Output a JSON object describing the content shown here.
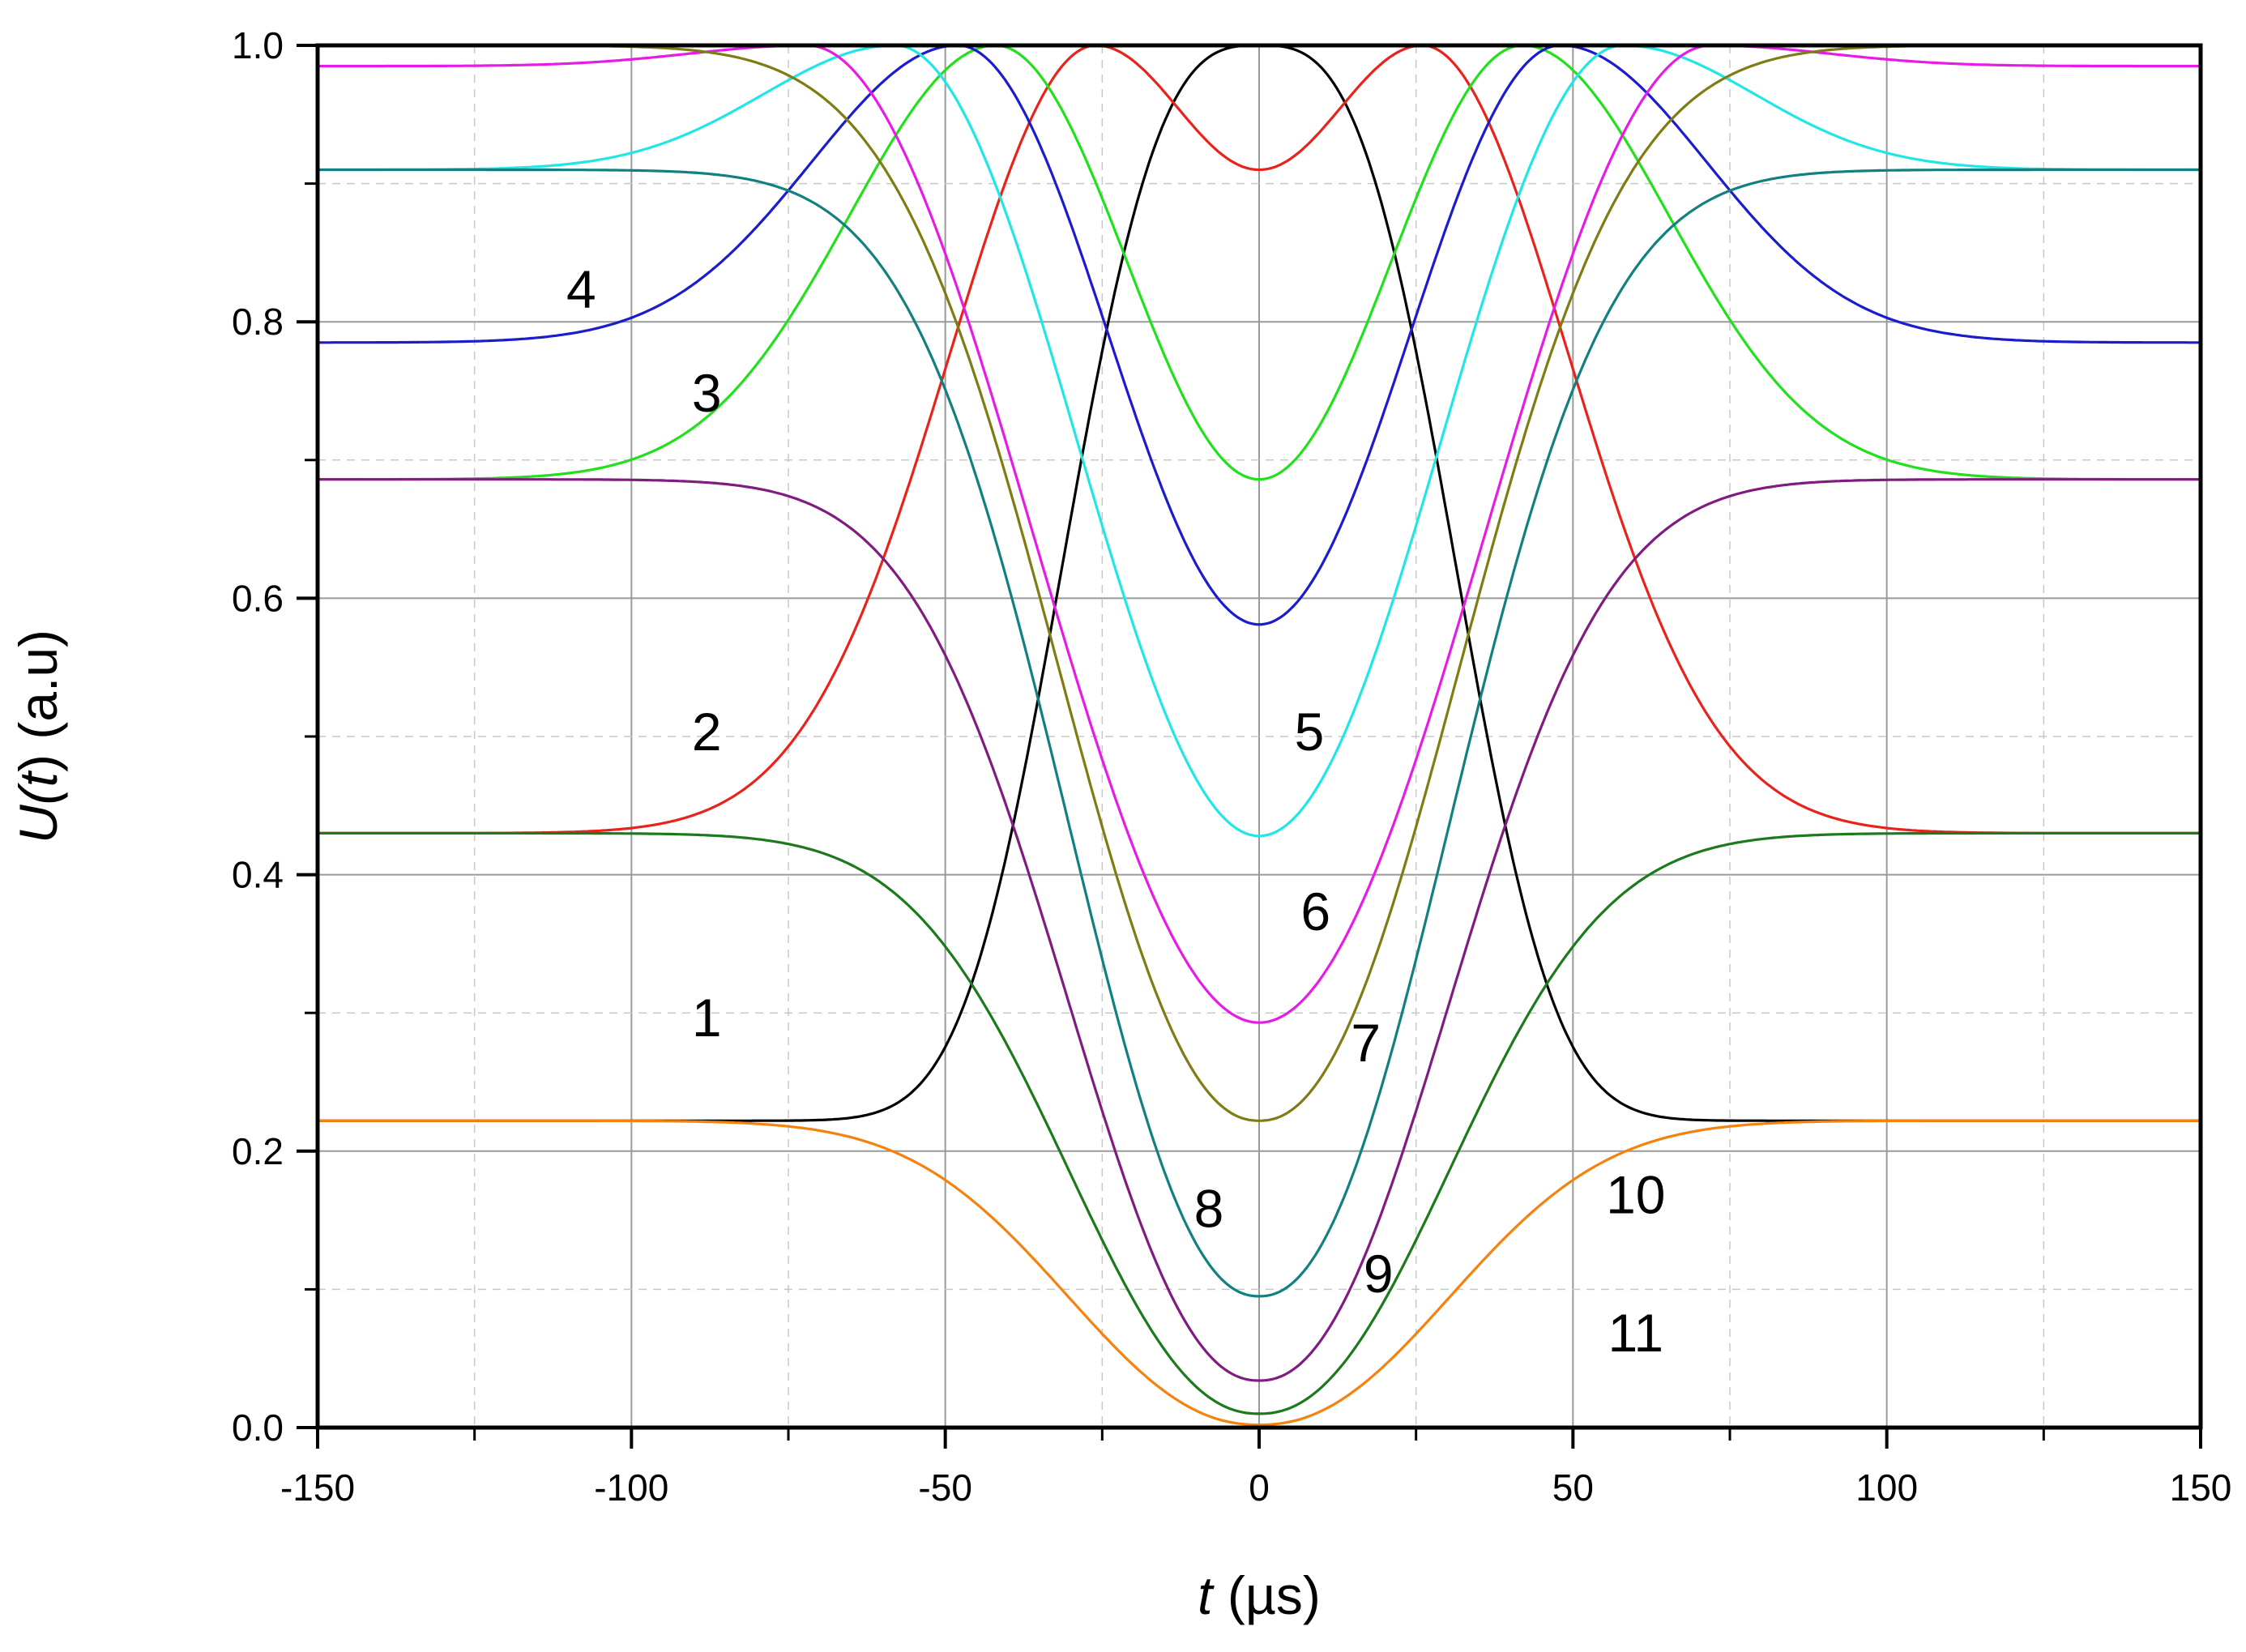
{
  "chart_data": {
    "type": "line",
    "xlabel_var": "t",
    "xlabel_unit": " (µs)",
    "ylabel_var_pre": "U(",
    "ylabel_var_t": "t",
    "ylabel_var_post": ")",
    "ylabel_unit": " (a.u)",
    "xlim": [
      -150,
      150
    ],
    "ylim": [
      0,
      1
    ],
    "xticks": [
      -150,
      -100,
      -50,
      0,
      50,
      100,
      150
    ],
    "xtick_labels": [
      "-150",
      "-100",
      "-50",
      "0",
      "50",
      "100",
      "150"
    ],
    "yticks": [
      0,
      0.2,
      0.4,
      0.6,
      0.8,
      1.0
    ],
    "ytick_labels": [
      "0.0",
      "0.2",
      "0.4",
      "0.6",
      "0.8",
      "1.0"
    ],
    "grid": true,
    "legend": "none",
    "series": [
      {
        "name": "1",
        "color": "#000000",
        "shape": "bump",
        "base": 0.222,
        "center": 0,
        "width": 36,
        "peak": 1.0
      },
      {
        "name": "2",
        "color": "#e8231c",
        "shape": "double",
        "base": 0.43,
        "center": 26,
        "width": 30,
        "peak": 1.0,
        "min": 0.91
      },
      {
        "name": "3",
        "color": "#22e01c",
        "shape": "double",
        "base": 0.686,
        "center": 42,
        "width": 30,
        "peak": 1.0,
        "min": 0.686
      },
      {
        "name": "4",
        "color": "#1c1ccc",
        "shape": "double",
        "base": 0.785,
        "center": 48,
        "width": 30,
        "peak": 1.0,
        "min": 0.581
      },
      {
        "name": "5",
        "color": "#22e6e6",
        "shape": "double",
        "base": 0.91,
        "center": 58,
        "width": 27,
        "peak": 1.0,
        "min": 0.428
      },
      {
        "name": "6",
        "color": "#e61ce6",
        "shape": "double",
        "base": 0.985,
        "center": 72,
        "width": 24,
        "peak": 1.0,
        "min": 0.293
      },
      {
        "name": "7",
        "color": "#807c14",
        "shape": "dip",
        "base": 1.0,
        "center": 0,
        "width": 42,
        "min": 0.222
      },
      {
        "name": "8",
        "color": "#138080",
        "shape": "dip",
        "base": 0.91,
        "center": 0,
        "width": 40,
        "min": 0.095
      },
      {
        "name": "9",
        "color": "#801c80",
        "shape": "dip",
        "base": 0.686,
        "center": 0,
        "width": 40,
        "min": 0.034
      },
      {
        "name": "10",
        "color": "#1c7a1c",
        "shape": "dip",
        "base": 0.43,
        "center": 0,
        "width": 40,
        "min": 0.01
      },
      {
        "name": "11",
        "color": "#f5820f",
        "shape": "dip",
        "base": 0.222,
        "center": 0,
        "width": 40,
        "min": 0.002
      }
    ],
    "curve_labels": [
      {
        "text": "1",
        "x": -88,
        "y": 0.283
      },
      {
        "text": "2",
        "x": -88,
        "y": 0.49
      },
      {
        "text": "3",
        "x": -88,
        "y": 0.735
      },
      {
        "text": "4",
        "x": -108,
        "y": 0.81
      },
      {
        "text": "5",
        "x": 8,
        "y": 0.49
      },
      {
        "text": "6",
        "x": 9,
        "y": 0.36
      },
      {
        "text": "7",
        "x": 17,
        "y": 0.265
      },
      {
        "text": "8",
        "x": -8,
        "y": 0.145
      },
      {
        "text": "9",
        "x": 19,
        "y": 0.098
      },
      {
        "text": "10",
        "x": 60,
        "y": 0.155
      },
      {
        "text": "11",
        "x": 60,
        "y": 0.055
      }
    ]
  }
}
